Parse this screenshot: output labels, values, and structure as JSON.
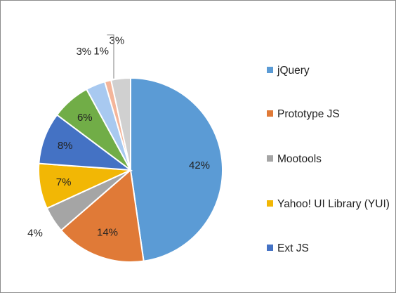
{
  "chart_data": {
    "type": "pie",
    "title": "",
    "categories": [
      "jQuery",
      "Prototype JS",
      "Mootools",
      "Yahoo! UI Library (YUI)",
      "Ext JS",
      "",
      "",
      "",
      ""
    ],
    "values": [
      42,
      14,
      4,
      7,
      8,
      6,
      3,
      1,
      3
    ],
    "labels": [
      "42%",
      "14%",
      "4%",
      "7%",
      "8%",
      "6%",
      "3%",
      "1%",
      "3%"
    ],
    "colors": [
      "#5b9bd5",
      "#e07a37",
      "#a5a5a5",
      "#f2b705",
      "#4472c4",
      "#71ad47",
      "#a8c9f0",
      "#f4b59a",
      "#d0d0d0"
    ],
    "legend": [
      {
        "label": "jQuery",
        "color": "#5b9bd5"
      },
      {
        "label": "Prototype JS",
        "color": "#e07a37"
      },
      {
        "label": "Mootools",
        "color": "#a5a5a5"
      },
      {
        "label": "Yahoo! UI Library (YUI)",
        "color": "#f2b705"
      },
      {
        "label": "Ext JS",
        "color": "#4472c4"
      }
    ],
    "legend_position": "right"
  }
}
